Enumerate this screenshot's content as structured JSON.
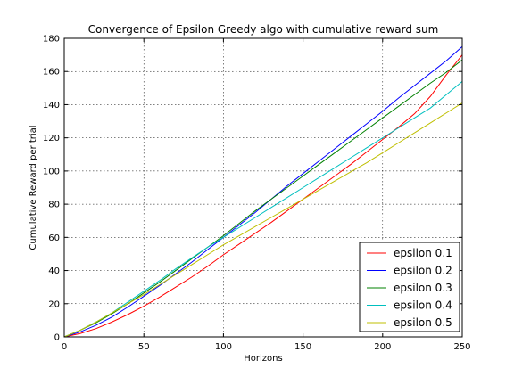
{
  "chart_data": {
    "type": "line",
    "title": "Convergence of Epsilon Greedy algo with cumulative reward sum",
    "xlabel": "Horizons",
    "ylabel": "Cumulative Reward per trial",
    "xlim": [
      0,
      250
    ],
    "ylim": [
      0,
      180
    ],
    "xticks": [
      0,
      50,
      100,
      150,
      200,
      250
    ],
    "yticks": [
      0,
      20,
      40,
      60,
      80,
      100,
      120,
      140,
      160,
      180
    ],
    "xtick_labels": [
      "0",
      "50",
      "100",
      "150",
      "200",
      "250"
    ],
    "ytick_labels": [
      "0",
      "20",
      "40",
      "60",
      "80",
      "100",
      "120",
      "140",
      "160",
      "180"
    ],
    "grid": true,
    "legend_position": "bottom-right",
    "series": [
      {
        "name": "epsilon 0.1",
        "color": "#ff0000",
        "x": [
          0,
          10,
          20,
          30,
          40,
          50,
          60,
          70,
          80,
          90,
          100,
          110,
          120,
          130,
          140,
          150,
          160,
          170,
          180,
          190,
          200,
          210,
          220,
          230,
          240,
          250
        ],
        "y": [
          0,
          2,
          5,
          9,
          13.5,
          18.5,
          24,
          30,
          36,
          42.5,
          49.5,
          56,
          62.5,
          69,
          76,
          83,
          90,
          97,
          104,
          111.5,
          119,
          126.5,
          134.5,
          145,
          158,
          170
        ]
      },
      {
        "name": "epsilon 0.2",
        "color": "#0000ff",
        "x": [
          0,
          10,
          20,
          30,
          40,
          50,
          60,
          70,
          80,
          90,
          100,
          110,
          120,
          130,
          140,
          150,
          160,
          170,
          180,
          190,
          200,
          210,
          220,
          230,
          240,
          250
        ],
        "y": [
          0,
          3,
          7,
          12,
          18,
          24.5,
          31,
          38,
          45,
          52.5,
          60,
          67.5,
          75,
          83,
          91,
          98.5,
          106,
          113.5,
          121,
          128.5,
          136,
          144,
          151.5,
          159,
          166.5,
          175
        ]
      },
      {
        "name": "epsilon 0.3",
        "color": "#008000",
        "x": [
          0,
          10,
          20,
          30,
          40,
          50,
          60,
          70,
          80,
          90,
          100,
          110,
          120,
          130,
          140,
          150,
          160,
          170,
          180,
          190,
          200,
          210,
          220,
          230,
          240,
          250
        ],
        "y": [
          0,
          4,
          8.5,
          14,
          20,
          26.5,
          33,
          40,
          47,
          54,
          61,
          68.5,
          76,
          83,
          90,
          97,
          104,
          111,
          118,
          125,
          132,
          139,
          146,
          153,
          159.5,
          167
        ]
      },
      {
        "name": "epsilon 0.4",
        "color": "#00bfbf",
        "x": [
          0,
          10,
          20,
          30,
          40,
          50,
          60,
          70,
          80,
          90,
          100,
          110,
          120,
          130,
          140,
          150,
          160,
          170,
          180,
          190,
          200,
          210,
          220,
          230,
          240,
          250
        ],
        "y": [
          0,
          4,
          9,
          14.5,
          21,
          27.5,
          34,
          41,
          47.5,
          54,
          60,
          66,
          72,
          78,
          84,
          90,
          96,
          102,
          108,
          114,
          120,
          126,
          132,
          138,
          146,
          154
        ]
      },
      {
        "name": "epsilon 0.5",
        "color": "#bfbf00",
        "x": [
          0,
          10,
          20,
          30,
          40,
          50,
          60,
          70,
          80,
          90,
          100,
          110,
          120,
          130,
          140,
          150,
          160,
          170,
          180,
          190,
          200,
          210,
          220,
          230,
          240,
          250
        ],
        "y": [
          0,
          4,
          9,
          14.5,
          20,
          25.5,
          31.5,
          37.5,
          43.5,
          49.5,
          55.5,
          61,
          66.5,
          72,
          77.5,
          83,
          88.5,
          94,
          99.5,
          105,
          111,
          117,
          123,
          129,
          135,
          141
        ]
      }
    ]
  }
}
